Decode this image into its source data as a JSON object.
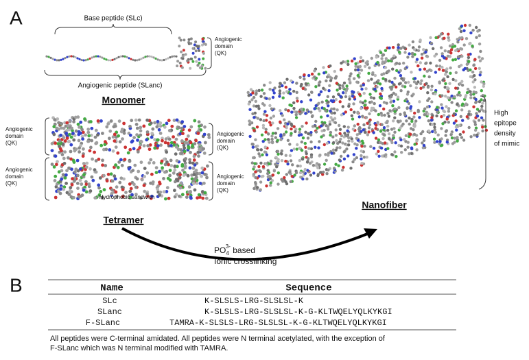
{
  "panel_a": {
    "label": "A",
    "monomer": {
      "base_label": "Base peptide (SLc)",
      "domain_label": [
        "Angiogenic",
        "domain",
        "(QK)"
      ],
      "peptide_label": "Angiogenic peptide (SLanc)",
      "title": "Monomer"
    },
    "tetramer": {
      "domain_labels": [
        [
          "Angiogenic",
          "domain",
          "(QK)"
        ],
        [
          "Angiogenic",
          "domain",
          "(QK)"
        ],
        [
          "Angiogenic",
          "domain",
          "(QK)"
        ],
        [
          "Angiogenic",
          "domain",
          "(QK)"
        ]
      ],
      "core_label": "Hydrophobic sandwich",
      "title": "Tetramer"
    },
    "nanofiber": {
      "title": "Nanofiber",
      "epitope_label": [
        "High",
        "epitope",
        "density",
        "of mimic"
      ]
    },
    "crosslink": {
      "formula": "PO",
      "subscript": "4",
      "superscript": "3-",
      "suffix": " based",
      "line2": "Ionic crosslinking"
    }
  },
  "panel_b": {
    "label": "B",
    "table": {
      "header": [
        "Name",
        "Sequence"
      ],
      "rows": [
        [
          "SLc",
          "K-SLSLS-LRG-SLSLSL-K"
        ],
        [
          "SLanc",
          "K-SLSLS-LRG-SLSLSL-K-G-KLTWQELYQLKYKGI"
        ],
        [
          "F-SLanc",
          "TAMRA-K-SLSLS-LRG-SLSLSL-K-G-KLTWQELYQLKYKGI"
        ]
      ]
    },
    "footnote": [
      "All peptides were C-terminal amidated. All peptides were N terminal acetylated, with the exception of",
      "F-SLanc which was N terminal modified with TAMRA."
    ]
  }
}
